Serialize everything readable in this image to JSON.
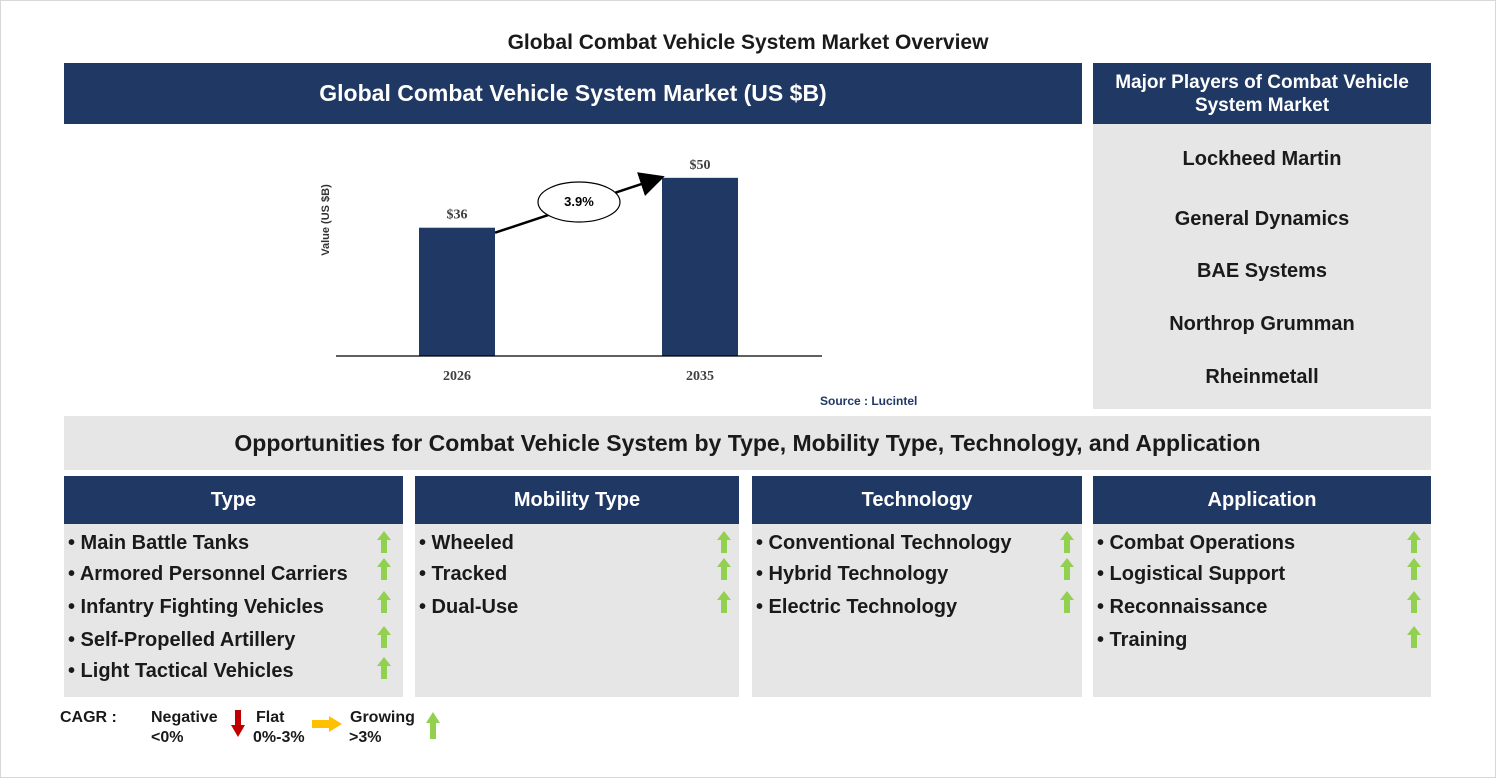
{
  "page_title": "Global Combat Vehicle System Market Overview",
  "chart_header": "Global Combat Vehicle System Market (US $B)",
  "chart_data": {
    "type": "bar",
    "categories": [
      "2026",
      "2035"
    ],
    "values": [
      36,
      50
    ],
    "value_labels": [
      "$36",
      "$50"
    ],
    "ylabel": "Value (US $B)",
    "cagr_label": "3.9%",
    "ylim": [
      0,
      55
    ],
    "bar_color": "#1f3864"
  },
  "source": "Source : Lucintel",
  "players": {
    "header": "Major Players of Combat Vehicle System Market",
    "items": [
      "Lockheed Martin",
      "General Dynamics",
      "BAE Systems",
      "Northrop Grumman",
      "Rheinmetall"
    ]
  },
  "opportunities_title": "Opportunities for Combat Vehicle System by Type, Mobility Type, Technology, and Application",
  "categories": [
    {
      "title": "Type",
      "items": [
        "• Main Battle Tanks",
        "• Armored Personnel Carriers",
        "• Infantry Fighting Vehicles",
        "• Self-Propelled Artillery",
        "• Light Tactical Vehicles"
      ],
      "trends": [
        "growing",
        "growing",
        "growing",
        "growing",
        "growing"
      ]
    },
    {
      "title": "Mobility Type",
      "items": [
        "• Wheeled",
        "• Tracked",
        "• Dual-Use"
      ],
      "trends": [
        "growing",
        "growing",
        "growing"
      ]
    },
    {
      "title": "Technology",
      "items": [
        "• Conventional Technology",
        "• Hybrid Technology",
        "• Electric Technology"
      ],
      "trends": [
        "growing",
        "growing",
        "growing"
      ]
    },
    {
      "title": "Application",
      "items": [
        "• Combat Operations",
        "• Logistical Support",
        "• Reconnaissance",
        "• Training"
      ],
      "trends": [
        "growing",
        "growing",
        "growing",
        "growing"
      ]
    }
  ],
  "legend": {
    "cagr": "CAGR :",
    "negative": "Negative",
    "negative_range": "<0%",
    "flat": "Flat",
    "flat_range": "0%-3%",
    "growing": "Growing",
    "growing_range": ">3%"
  },
  "colors": {
    "navy": "#1f3864",
    "panel_gray": "#e6e6e6",
    "growing_green": "#92d050",
    "flat_amber": "#ffc000",
    "negative_red": "#c00000"
  }
}
